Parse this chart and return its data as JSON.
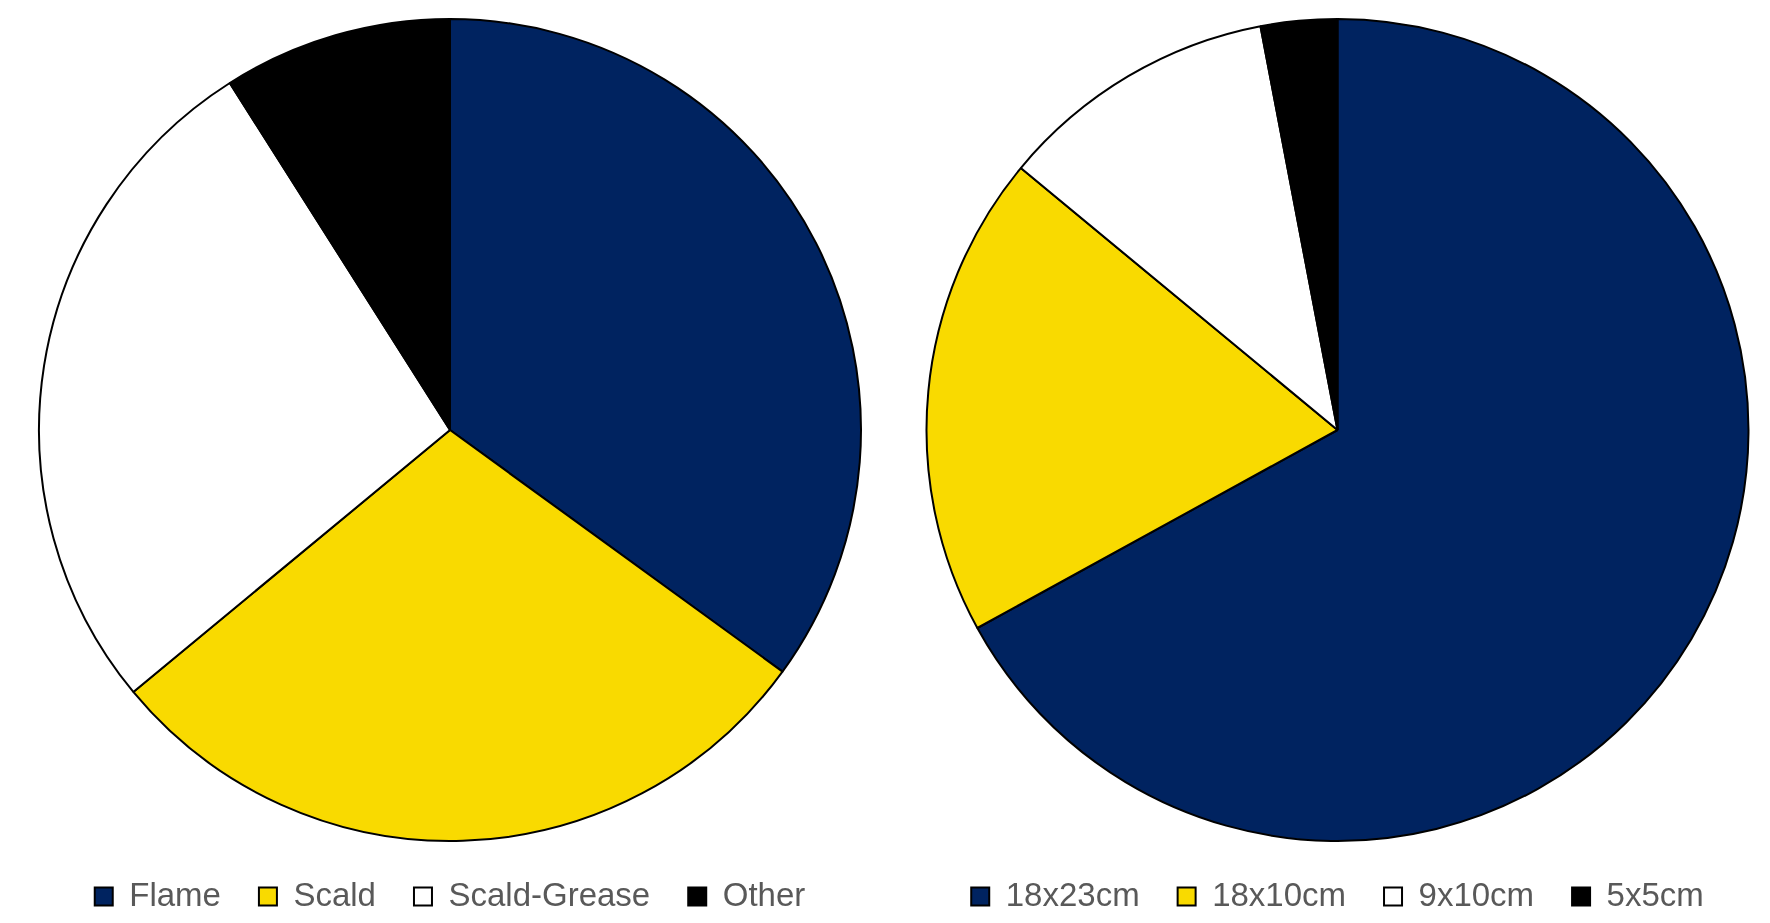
{
  "chart_data": [
    {
      "type": "pie",
      "categories": [
        "Flame",
        "Scald",
        "Scald-Grease",
        "Other"
      ],
      "values": [
        35,
        29,
        27,
        9
      ],
      "colors": [
        "#002360",
        "#f9da00",
        "#ffffff",
        "#000000"
      ],
      "legend": "bottom"
    },
    {
      "type": "pie",
      "categories": [
        "18x23cm",
        "18x10cm",
        "9x10cm",
        "5x5cm"
      ],
      "values": [
        67,
        19,
        11,
        3
      ],
      "colors": [
        "#002360",
        "#f9da00",
        "#ffffff",
        "#000000"
      ],
      "legend": "bottom"
    }
  ]
}
